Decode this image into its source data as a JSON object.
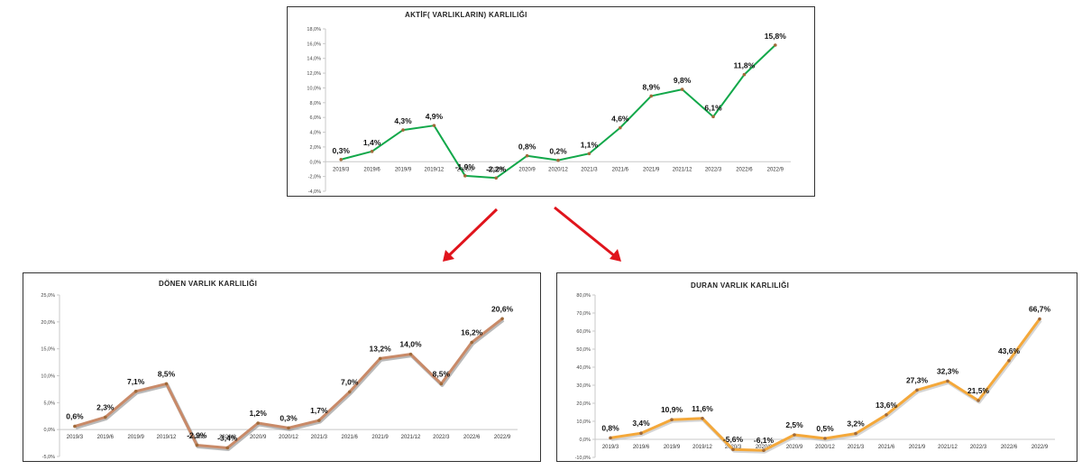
{
  "chart_data": [
    {
      "id": "aktif",
      "type": "line",
      "title": "AKTİF( VARLIKLARIN) KARLILIĞI",
      "categories": [
        "2019/3",
        "2019/6",
        "2019/9",
        "2019/12",
        "2020/3",
        "2020/6",
        "2020/9",
        "2020/12",
        "2021/3",
        "2021/6",
        "2021/9",
        "2021/12",
        "2022/3",
        "2022/6",
        "2022/9"
      ],
      "values": [
        0.3,
        1.4,
        4.3,
        4.9,
        -1.9,
        -2.2,
        0.8,
        0.2,
        1.1,
        4.6,
        8.9,
        9.8,
        6.1,
        11.8,
        15.8
      ],
      "value_labels": [
        "0,3%",
        "1,4%",
        "4,3%",
        "4,9%",
        "-1,9%",
        "-2,2%",
        "0,8%",
        "0,2%",
        "1,1%",
        "4,6%",
        "8,9%",
        "9,8%",
        "6,1%",
        "11,8%",
        "15,8%"
      ],
      "ylim": [
        -4,
        18
      ],
      "yticks": [
        -4,
        -2,
        0,
        2,
        4,
        6,
        8,
        10,
        12,
        14,
        16,
        18
      ],
      "ytick_labels": [
        "-4,0%",
        "-2,0%",
        "0,0%",
        "2,0%",
        "4,0%",
        "6,0%",
        "8,0%",
        "10,0%",
        "12,0%",
        "14,0%",
        "16,0%",
        "18,0%"
      ],
      "color": "#12a84a",
      "grid": false
    },
    {
      "id": "donen",
      "type": "line",
      "title": "DÖNEN VARLIK KARLILIĞI",
      "categories": [
        "2019/3",
        "2019/6",
        "2019/9",
        "2019/12",
        "2020/3",
        "2020/6",
        "2020/9",
        "2020/12",
        "2021/3",
        "2021/6",
        "2021/9",
        "2021/12",
        "2022/3",
        "2022/6",
        "2022/9"
      ],
      "values": [
        0.6,
        2.3,
        7.1,
        8.5,
        -2.9,
        -3.4,
        1.2,
        0.3,
        1.7,
        7.0,
        13.2,
        14.0,
        8.5,
        16.2,
        20.6
      ],
      "value_labels": [
        "0,6%",
        "2,3%",
        "7,1%",
        "8,5%",
        "-2,9%",
        "-3,4%",
        "1,2%",
        "0,3%",
        "1,7%",
        "7,0%",
        "13,2%",
        "14,0%",
        "8,5%",
        "16,2%",
        "20,6%"
      ],
      "ylim": [
        -5,
        25
      ],
      "yticks": [
        -5,
        0,
        5,
        10,
        15,
        20,
        25
      ],
      "ytick_labels": [
        "-5,0%",
        "0,0%",
        "5,0%",
        "10,0%",
        "15,0%",
        "20,0%",
        "25,0%"
      ],
      "color": "#c98a68",
      "grid": false
    },
    {
      "id": "duran",
      "type": "line",
      "title": "DURAN VARLIK KARLILIĞI",
      "categories": [
        "2019/3",
        "2019/6",
        "2019/9",
        "2019/12",
        "2020/3",
        "2020/6",
        "2020/9",
        "2020/12",
        "2021/3",
        "2021/6",
        "2021/9",
        "2021/12",
        "2022/3",
        "2022/6",
        "2022/9"
      ],
      "values": [
        0.8,
        3.4,
        10.9,
        11.6,
        -5.6,
        -6.1,
        2.5,
        0.5,
        3.2,
        13.6,
        27.3,
        32.3,
        21.5,
        43.6,
        66.7
      ],
      "value_labels": [
        "0,8%",
        "3,4%",
        "10,9%",
        "11,6%",
        "-5,6%",
        "-6,1%",
        "2,5%",
        "0,5%",
        "3,2%",
        "13,6%",
        "27,3%",
        "32,3%",
        "21,5%",
        "43,6%",
        "66,7%"
      ],
      "ylim": [
        -10,
        80
      ],
      "yticks": [
        -10,
        0,
        10,
        20,
        30,
        40,
        50,
        60,
        70,
        80
      ],
      "ytick_labels": [
        "-10,0%",
        "0,0%",
        "10,0%",
        "20,0%",
        "30,0%",
        "40,0%",
        "50,0%",
        "60,0%",
        "70,0%",
        "80,0%"
      ],
      "color": "#f4a83a",
      "grid": false
    }
  ],
  "arrows": {
    "color": "#e0141c"
  }
}
